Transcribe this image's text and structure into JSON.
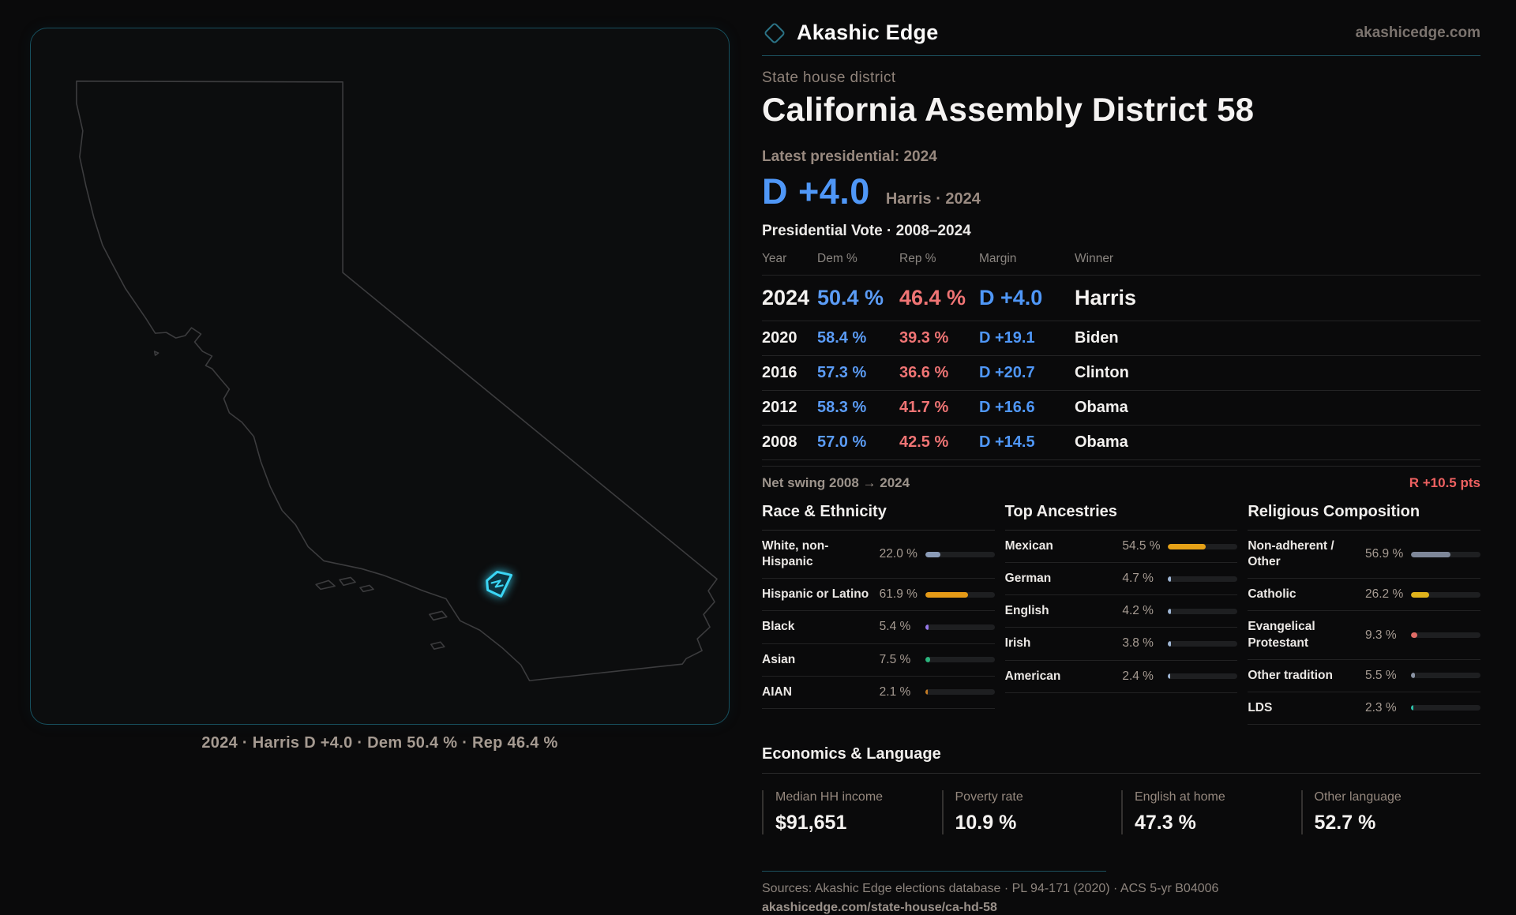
{
  "brand": {
    "name": "Akashic Edge",
    "domain": "akashicedge.com"
  },
  "header": {
    "kicker": "State house district",
    "title": "California Assembly District 58",
    "latest_label": "Latest presidential: 2024",
    "margin_big": "D +4.0",
    "margin_context": "Harris · 2024"
  },
  "map": {
    "caption": "2024 · Harris D +4.0 · Dem 50.4 % · Rep 46.4 %",
    "highlight_color": "#3bd6f5",
    "outline_color": "#3c3c3e"
  },
  "table": {
    "title": "Presidential Vote · 2008–2024",
    "columns": [
      "Year",
      "Dem %",
      "Rep %",
      "Margin",
      "Winner"
    ],
    "rows": [
      {
        "year": "2024",
        "dem": "50.4 %",
        "rep": "46.4 %",
        "margin": "D +4.0",
        "winner": "Harris",
        "emphasis": true
      },
      {
        "year": "2020",
        "dem": "58.4 %",
        "rep": "39.3 %",
        "margin": "D +19.1",
        "winner": "Biden",
        "emphasis": false
      },
      {
        "year": "2016",
        "dem": "57.3 %",
        "rep": "36.6 %",
        "margin": "D +20.7",
        "winner": "Clinton",
        "emphasis": false
      },
      {
        "year": "2012",
        "dem": "58.3 %",
        "rep": "41.7 %",
        "margin": "D +16.6",
        "winner": "Obama",
        "emphasis": false
      },
      {
        "year": "2008",
        "dem": "57.0 %",
        "rep": "42.5 %",
        "margin": "D +14.5",
        "winner": "Obama",
        "emphasis": false
      }
    ],
    "net_swing_label": "Net swing 2008 → 2024",
    "net_swing_value": "R +10.5 pts",
    "dem_color": "#5b9cf6",
    "rep_color": "#ef7474"
  },
  "chart_data": [
    {
      "type": "bar",
      "title": "Race & Ethnicity",
      "categories": [
        "White, non-Hispanic",
        "Hispanic or Latino",
        "Black",
        "Asian",
        "AIAN"
      ],
      "values": [
        22.0,
        61.9,
        5.4,
        7.5,
        2.1
      ],
      "value_labels": [
        "22.0 %",
        "61.9 %",
        "5.4 %",
        "7.5 %",
        "2.1 %"
      ],
      "colors": [
        "#8b9cb8",
        "#e59a17",
        "#9678e8",
        "#2bb47d",
        "#c27a24"
      ],
      "xlim": [
        0,
        100
      ]
    },
    {
      "type": "bar",
      "title": "Top Ancestries",
      "categories": [
        "Mexican",
        "German",
        "English",
        "Irish",
        "American"
      ],
      "values": [
        54.5,
        4.7,
        4.2,
        3.8,
        2.4
      ],
      "value_labels": [
        "54.5 %",
        "4.7 %",
        "4.2 %",
        "3.8 %",
        "2.4 %"
      ],
      "colors": [
        "#e5a117",
        "#9fb6d4",
        "#9fb6d4",
        "#9fb6d4",
        "#9fb6d4"
      ],
      "xlim": [
        0,
        100
      ]
    },
    {
      "type": "bar",
      "title": "Religious Composition",
      "categories": [
        "Non-adherent / Other",
        "Catholic",
        "Evangelical Protestant",
        "Other tradition",
        "LDS"
      ],
      "values": [
        56.9,
        26.2,
        9.3,
        5.5,
        2.3
      ],
      "value_labels": [
        "56.9 %",
        "26.2 %",
        "9.3 %",
        "5.5 %",
        "2.3 %"
      ],
      "colors": [
        "#7e8799",
        "#dfb21c",
        "#e06c66",
        "#8a93a3",
        "#2bbfa8"
      ],
      "xlim": [
        0,
        100
      ]
    }
  ],
  "economics": {
    "title": "Economics & Language",
    "stats": [
      {
        "label": "Median HH income",
        "value": "$91,651"
      },
      {
        "label": "Poverty rate",
        "value": "10.9 %"
      },
      {
        "label": "English at home",
        "value": "47.3 %"
      },
      {
        "label": "Other language",
        "value": "52.7 %"
      }
    ]
  },
  "footer": {
    "sources": "Sources: Akashic Edge elections database · PL 94-171 (2020) · ACS 5-yr B04006",
    "slug": "akashicedge.com/state-house/ca-hd-58"
  }
}
